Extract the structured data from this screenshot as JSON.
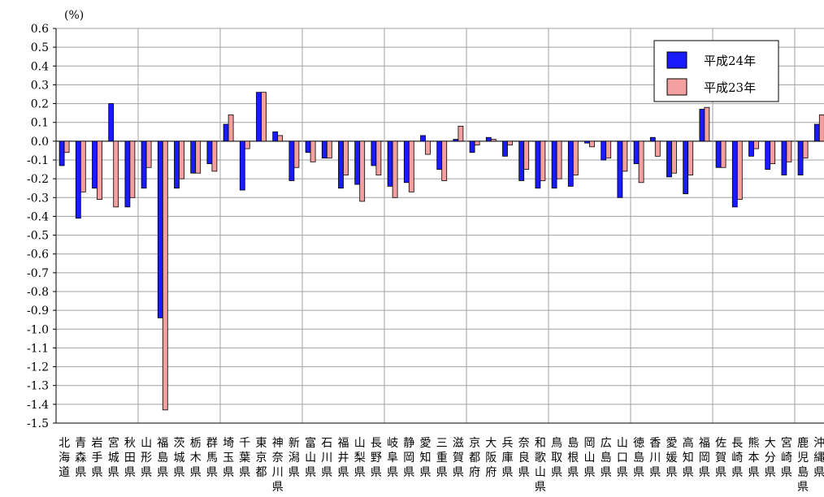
{
  "chart_data": {
    "type": "bar",
    "unit_label": "(%)",
    "ylim": [
      -1.5,
      0.6
    ],
    "yticks": [
      "0.6",
      "0.5",
      "0.4",
      "0.3",
      "0.2",
      "0.1",
      "0.0",
      "-0.1",
      "-0.2",
      "-0.3",
      "-0.4",
      "-0.5",
      "-0.6",
      "-0.7",
      "-0.8",
      "-0.9",
      "-1.0",
      "-1.1",
      "-1.2",
      "-1.3",
      "-1.4",
      "-1.5"
    ],
    "grid": true,
    "legend_position": "top-right",
    "categories": [
      "北海道",
      "青森県",
      "岩手県",
      "宮城県",
      "秋田県",
      "山形県",
      "福島県",
      "茨城県",
      "栃木県",
      "群馬県",
      "埼玉県",
      "千葉県",
      "東京都",
      "神奈川県",
      "新潟県",
      "富山県",
      "石川県",
      "福井県",
      "山梨県",
      "長野県",
      "岐阜県",
      "静岡県",
      "愛知県",
      "三重県",
      "滋賀県",
      "京都府",
      "大阪府",
      "兵庫県",
      "奈良県",
      "和歌山県",
      "鳥取県",
      "島根県",
      "岡山県",
      "広島県",
      "山口県",
      "徳島県",
      "香川県",
      "愛媛県",
      "高知県",
      "福岡県",
      "佐賀県",
      "長崎県",
      "熊本県",
      "大分県",
      "宮崎県",
      "鹿児島県",
      "沖縄県"
    ],
    "series": [
      {
        "name": "平成24年",
        "color": "#1a1aff",
        "values": [
          -0.13,
          -0.41,
          -0.25,
          0.2,
          -0.35,
          -0.25,
          -0.94,
          -0.25,
          -0.17,
          -0.12,
          0.09,
          -0.26,
          0.26,
          0.05,
          -0.21,
          -0.06,
          -0.09,
          -0.25,
          -0.23,
          -0.13,
          -0.24,
          -0.22,
          0.03,
          -0.15,
          0.01,
          -0.06,
          0.02,
          -0.08,
          -0.21,
          -0.25,
          -0.25,
          -0.24,
          -0.01,
          -0.1,
          -0.3,
          -0.12,
          0.02,
          -0.19,
          -0.28,
          0.17,
          -0.14,
          -0.35,
          -0.08,
          -0.15,
          -0.18,
          -0.18,
          0.09
        ]
      },
      {
        "name": "平成23年",
        "color": "#f4a0a0",
        "values": [
          -0.06,
          -0.27,
          -0.31,
          -0.35,
          -0.3,
          -0.14,
          -1.43,
          -0.2,
          -0.17,
          -0.16,
          0.14,
          -0.04,
          0.26,
          0.03,
          -0.14,
          -0.11,
          -0.09,
          -0.18,
          -0.32,
          -0.18,
          -0.3,
          -0.27,
          -0.07,
          -0.21,
          0.08,
          -0.02,
          0.01,
          -0.02,
          -0.15,
          -0.21,
          -0.2,
          -0.18,
          -0.03,
          -0.09,
          -0.16,
          -0.22,
          -0.08,
          -0.17,
          -0.18,
          0.18,
          -0.14,
          -0.31,
          -0.04,
          -0.12,
          -0.11,
          -0.09,
          0.14
        ]
      }
    ]
  }
}
